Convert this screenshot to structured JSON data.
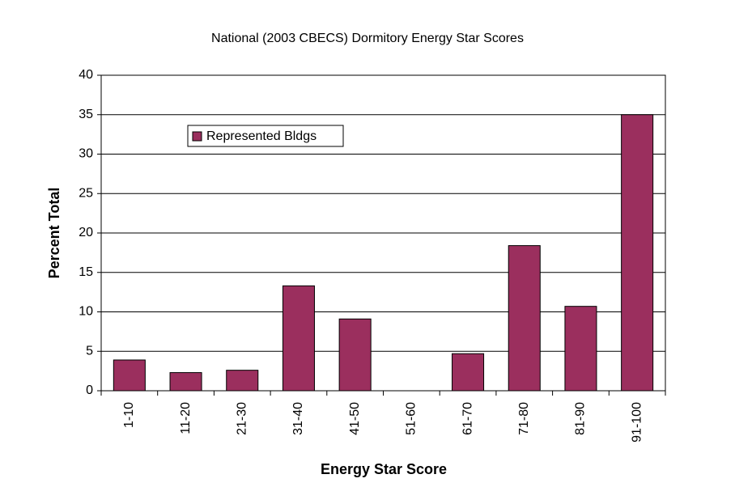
{
  "chart_data": {
    "type": "bar",
    "title": "National (2003 CBECS) Dormitory Energy Star Scores",
    "x_label": "Energy Star Score",
    "y_label": "Percent Total",
    "categories": [
      "1-10",
      "11-20",
      "21-30",
      "31-40",
      "41-50",
      "51-60",
      "61-70",
      "71-80",
      "81-90",
      "91-100"
    ],
    "series": [
      {
        "name": "Represented Bldgs",
        "color": "#9b2f5e",
        "values": [
          3.9,
          2.3,
          2.6,
          13.3,
          9.1,
          0,
          4.7,
          18.4,
          10.7,
          35
        ]
      }
    ],
    "ylim": [
      0,
      40
    ],
    "yticks": [
      0,
      5,
      10,
      15,
      20,
      25,
      30,
      35,
      40
    ],
    "grid": true,
    "legend": "upper-left"
  }
}
